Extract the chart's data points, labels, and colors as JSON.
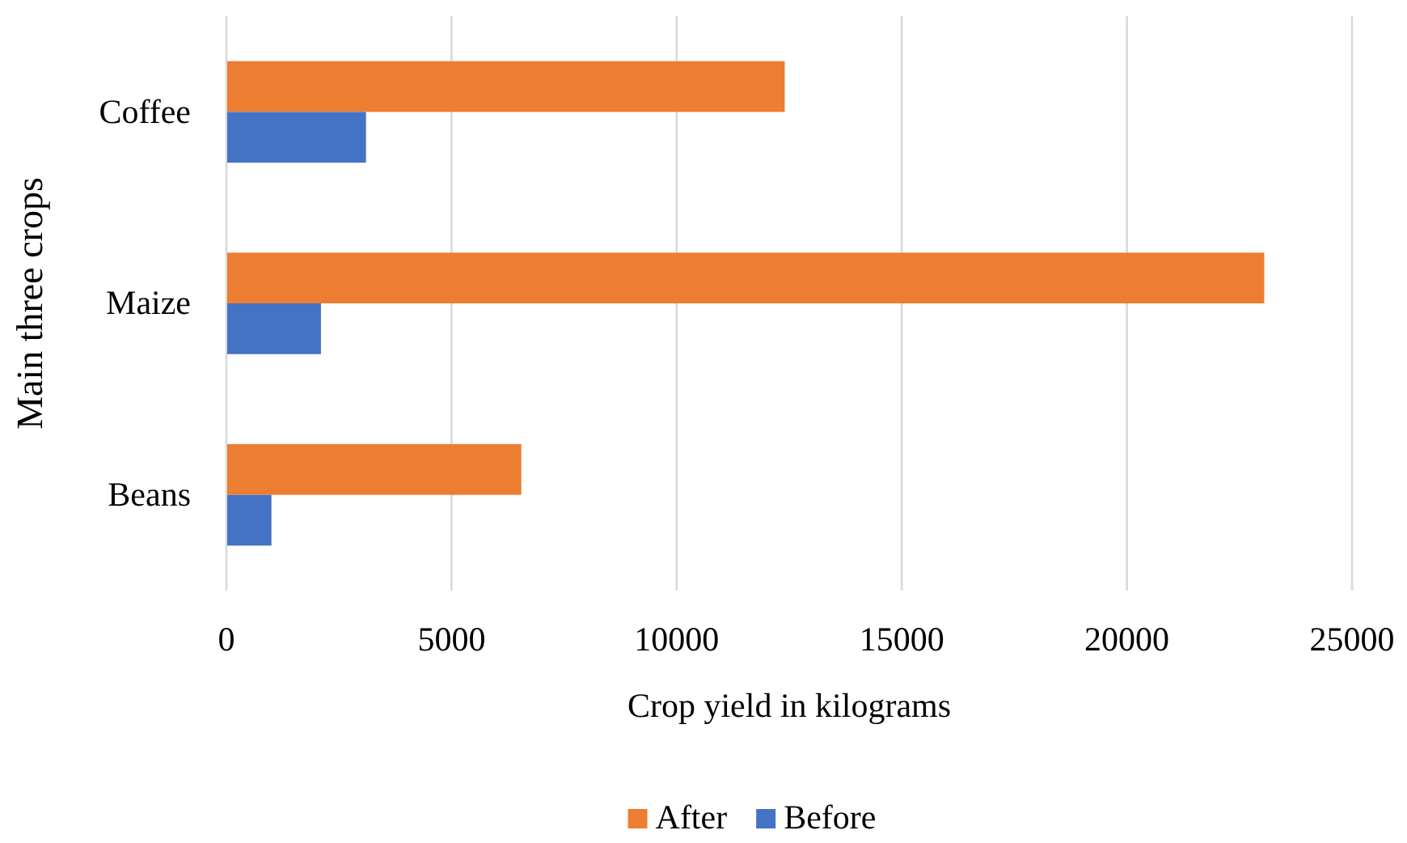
{
  "chart_data": {
    "type": "bar",
    "orientation": "horizontal",
    "xlabel": "Crop yield in kilograms",
    "ylabel": "Main three crops",
    "categories": [
      "Coffee",
      "Maize",
      "Beans"
    ],
    "series": [
      {
        "name": "After",
        "color": "#ed7d31",
        "values": [
          12400,
          23050,
          6550
        ]
      },
      {
        "name": "Before",
        "color": "#4472c4",
        "values": [
          3100,
          2100,
          1000
        ]
      }
    ],
    "xlim": [
      0,
      25000
    ],
    "xticks": [
      0,
      5000,
      10000,
      15000,
      20000,
      25000
    ],
    "grid": "x",
    "legend": "bottom"
  }
}
